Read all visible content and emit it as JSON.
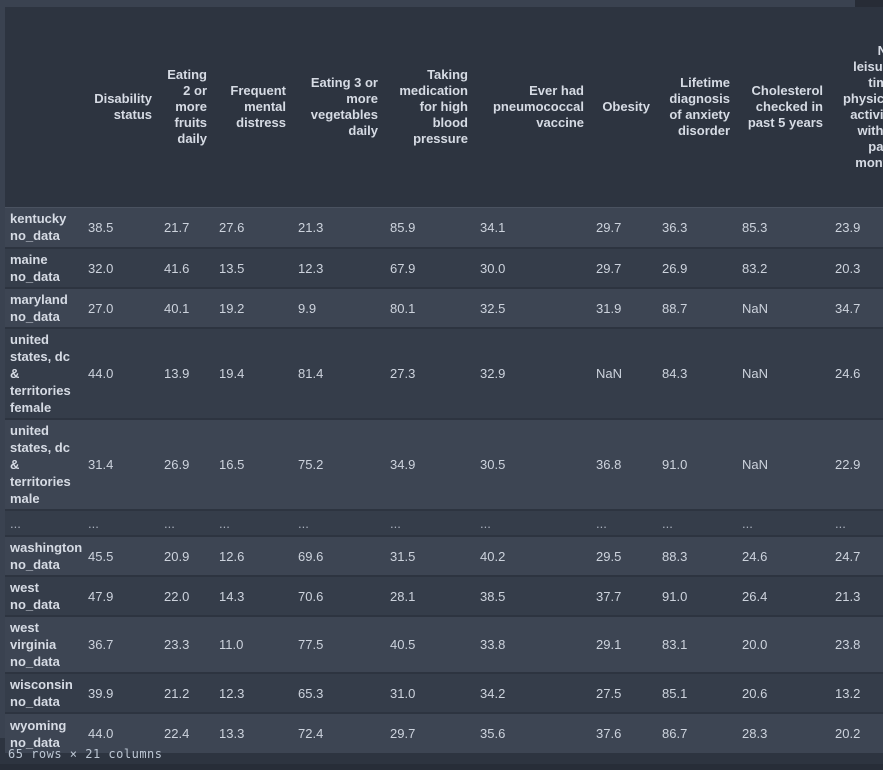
{
  "theme": {
    "page_bg": "#2d3440",
    "band": "#3a4250",
    "band_dark": "#272c36",
    "band_bottom": "#272d38",
    "row_odd": "#3d4553",
    "row_even": "#353d4a",
    "header_text": "#d6dbe4",
    "value_text": "#cdd3dd",
    "ellipsis_text": "#aab1bd",
    "footer_text": "#bdc7d4"
  },
  "table": {
    "index_header": "",
    "columns": [
      "Disability status",
      "Eating 2 or more fruits daily",
      "Frequent mental distress",
      "Eating 3 or more vegetables daily",
      "Taking medication for high blood pressure",
      "Ever had pneumococcal vaccine",
      "Obesity",
      "Lifetime diagnosis of anxiety disorder",
      "Cholesterol checked in past 5 years",
      "No leisure time physical activity within past month"
    ],
    "rows": [
      {
        "index_lines": [
          "kentucky",
          "no_data"
        ],
        "values": [
          "38.5",
          "21.7",
          "27.6",
          "21.3",
          "85.9",
          "34.1",
          "29.7",
          "36.3",
          "85.3",
          "23.9"
        ]
      },
      {
        "index_lines": [
          "maine",
          "no_data"
        ],
        "values": [
          "32.0",
          "41.6",
          "13.5",
          "12.3",
          "67.9",
          "30.0",
          "29.7",
          "26.9",
          "83.2",
          "20.3"
        ]
      },
      {
        "index_lines": [
          "maryland",
          "no_data"
        ],
        "values": [
          "27.0",
          "40.1",
          "19.2",
          "9.9",
          "80.1",
          "32.5",
          "31.9",
          "88.7",
          "NaN",
          "34.7"
        ]
      },
      {
        "index_lines": [
          "united",
          "states, dc",
          "&",
          "territories",
          "female"
        ],
        "values": [
          "44.0",
          "13.9",
          "19.4",
          "81.4",
          "27.3",
          "32.9",
          "NaN",
          "84.3",
          "NaN",
          "24.6"
        ]
      },
      {
        "index_lines": [
          "united",
          "states, dc",
          "&",
          "territories",
          "male"
        ],
        "values": [
          "31.4",
          "26.9",
          "16.5",
          "75.2",
          "34.9",
          "30.5",
          "36.8",
          "91.0",
          "NaN",
          "22.9"
        ]
      },
      {
        "ellipsis": true,
        "index_lines": [
          "..."
        ],
        "values": [
          "...",
          "...",
          "...",
          "...",
          "...",
          "...",
          "...",
          "...",
          "...",
          "..."
        ]
      },
      {
        "index_lines": [
          "washington",
          "no_data"
        ],
        "values": [
          "45.5",
          "20.9",
          "12.6",
          "69.6",
          "31.5",
          "40.2",
          "29.5",
          "88.3",
          "24.6",
          "24.7"
        ]
      },
      {
        "index_lines": [
          "west",
          "no_data"
        ],
        "values": [
          "47.9",
          "22.0",
          "14.3",
          "70.6",
          "28.1",
          "38.5",
          "37.7",
          "91.0",
          "26.4",
          "21.3"
        ]
      },
      {
        "index_lines": [
          "west",
          "virginia",
          "no_data"
        ],
        "values": [
          "36.7",
          "23.3",
          "11.0",
          "77.5",
          "40.5",
          "33.8",
          "29.1",
          "83.1",
          "20.0",
          "23.8"
        ]
      },
      {
        "index_lines": [
          "wisconsin",
          "no_data"
        ],
        "values": [
          "39.9",
          "21.2",
          "12.3",
          "65.3",
          "31.0",
          "34.2",
          "27.5",
          "85.1",
          "20.6",
          "13.2"
        ]
      },
      {
        "index_lines": [
          "wyoming",
          "no_data"
        ],
        "values": [
          "44.0",
          "22.4",
          "13.3",
          "72.4",
          "29.7",
          "35.6",
          "37.6",
          "86.7",
          "28.3",
          "20.2"
        ]
      }
    ]
  },
  "footer": {
    "text": "65 rows × 21 columns"
  }
}
